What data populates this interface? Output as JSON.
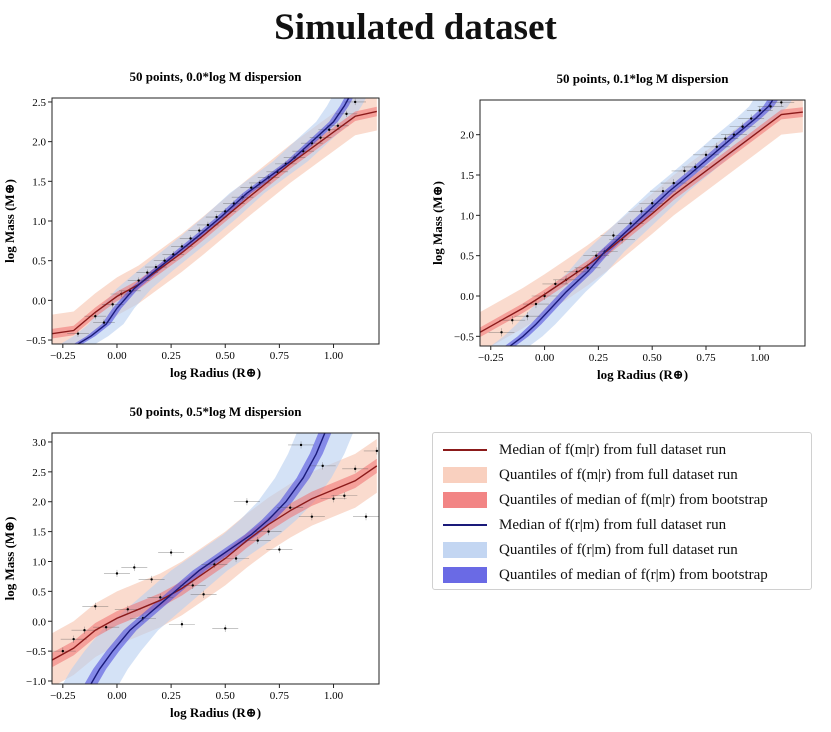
{
  "title": "Simulated dataset",
  "colors": {
    "median_mr": "#8b1a1a",
    "quant_mr": "#f8c8b4",
    "boot_mr": "#f07070",
    "median_rm": "#1a1a7a",
    "quant_rm": "#b8cff0",
    "boot_rm": "#5050e0"
  },
  "legend": [
    {
      "label": "Median of f(m|r) from full dataset run",
      "kind": "line",
      "color_key": "median_mr"
    },
    {
      "label": "Quantiles of f(m|r) from full dataset run",
      "kind": "patch",
      "color_key": "quant_mr"
    },
    {
      "label": "Quantiles of median of f(m|r) from bootstrap",
      "kind": "patch",
      "color_key": "boot_mr"
    },
    {
      "label": "Median of f(r|m) from full dataset run",
      "kind": "line",
      "color_key": "median_rm"
    },
    {
      "label": "Quantiles of f(r|m) from full dataset run",
      "kind": "patch",
      "color_key": "quant_rm"
    },
    {
      "label": "Quantiles of median of f(r|m) from bootstrap",
      "kind": "patch",
      "color_key": "boot_rm"
    }
  ],
  "chart_data": [
    {
      "type": "line",
      "title": "50 points, 0.0*log M dispersion",
      "xlabel": "log Radius (R⊕)",
      "ylabel": "log Mass (M⊕)",
      "xlim": [
        -0.3,
        1.21
      ],
      "ylim": [
        -0.55,
        2.55
      ],
      "xticks": [
        -0.25,
        0.0,
        0.25,
        0.5,
        0.75,
        1.0
      ],
      "xtick_labels": [
        "−0.25",
        "0.00",
        "0.25",
        "0.50",
        "0.75",
        "1.00"
      ],
      "yticks": [
        -0.5,
        0.0,
        0.5,
        1.0,
        1.5,
        2.0,
        2.5
      ],
      "ytick_labels": [
        "−0.5",
        "0.0",
        "0.5",
        "1.0",
        "1.5",
        "2.0",
        "2.5"
      ],
      "median_mr": {
        "x": [
          -0.3,
          -0.2,
          -0.1,
          0.0,
          0.1,
          0.2,
          0.3,
          0.4,
          0.5,
          0.6,
          0.7,
          0.8,
          0.9,
          1.0,
          1.1,
          1.2
        ],
        "y": [
          -0.42,
          -0.38,
          -0.15,
          0.05,
          0.2,
          0.4,
          0.6,
          0.82,
          1.05,
          1.28,
          1.5,
          1.72,
          1.92,
          2.12,
          2.32,
          2.38
        ]
      },
      "median_rm": {
        "x": [
          -0.18,
          -0.12,
          -0.05,
          0.0,
          0.08,
          0.18,
          0.28,
          0.38,
          0.48,
          0.6,
          0.7,
          0.8,
          0.9,
          1.0,
          1.05,
          1.07
        ],
        "y": [
          -0.55,
          -0.45,
          -0.3,
          -0.1,
          0.15,
          0.38,
          0.6,
          0.82,
          1.05,
          1.35,
          1.55,
          1.75,
          2.0,
          2.25,
          2.45,
          2.55
        ]
      },
      "quant_mr_width": 0.24,
      "boot_mr_width": 0.06,
      "quant_rm_width": 0.08,
      "boot_rm_width": 0.02,
      "points": {
        "x": [
          -0.18,
          -0.1,
          -0.06,
          -0.02,
          0.02,
          0.06,
          0.1,
          0.14,
          0.18,
          0.22,
          0.26,
          0.3,
          0.34,
          0.38,
          0.42,
          0.46,
          0.5,
          0.54,
          0.58,
          0.62,
          0.66,
          0.7,
          0.74,
          0.78,
          0.82,
          0.86,
          0.9,
          0.94,
          0.98,
          1.02,
          1.06,
          1.1
        ],
        "y": [
          -0.42,
          -0.2,
          -0.28,
          -0.05,
          0.08,
          0.12,
          0.25,
          0.35,
          0.42,
          0.5,
          0.58,
          0.68,
          0.78,
          0.88,
          0.95,
          1.05,
          1.12,
          1.22,
          1.3,
          1.42,
          1.48,
          1.55,
          1.62,
          1.72,
          1.8,
          1.88,
          1.98,
          2.05,
          2.15,
          2.2,
          2.35,
          2.5
        ]
      },
      "xerr": 0.05,
      "yerr": 0.04
    },
    {
      "type": "line",
      "title": "50 points, 0.1*log M dispersion",
      "xlabel": "log Radius (R⊕)",
      "ylabel": "log Mass (M⊕)",
      "xlim": [
        -0.3,
        1.21
      ],
      "ylim": [
        -0.62,
        2.43
      ],
      "xticks": [
        -0.25,
        0.0,
        0.25,
        0.5,
        0.75,
        1.0
      ],
      "xtick_labels": [
        "−0.25",
        "0.00",
        "0.25",
        "0.50",
        "0.75",
        "1.00"
      ],
      "yticks": [
        -0.5,
        0.0,
        0.5,
        1.0,
        1.5,
        2.0
      ],
      "ytick_labels": [
        "−0.5",
        "0.0",
        "0.5",
        "1.0",
        "1.5",
        "2.0"
      ],
      "median_mr": {
        "x": [
          -0.3,
          -0.2,
          -0.1,
          0.0,
          0.1,
          0.2,
          0.3,
          0.4,
          0.5,
          0.6,
          0.7,
          0.8,
          0.9,
          1.0,
          1.1,
          1.2
        ],
        "y": [
          -0.45,
          -0.3,
          -0.15,
          0.02,
          0.2,
          0.38,
          0.58,
          0.8,
          1.02,
          1.25,
          1.45,
          1.65,
          1.85,
          2.05,
          2.25,
          2.28
        ]
      },
      "median_rm": {
        "x": [
          -0.16,
          -0.1,
          -0.04,
          0.02,
          0.1,
          0.2,
          0.28,
          0.38,
          0.48,
          0.58,
          0.68,
          0.78,
          0.88,
          0.98,
          1.04,
          1.06
        ],
        "y": [
          -0.62,
          -0.5,
          -0.35,
          -0.18,
          0.05,
          0.3,
          0.55,
          0.8,
          1.05,
          1.3,
          1.52,
          1.75,
          1.98,
          2.2,
          2.35,
          2.43
        ]
      },
      "quant_mr_width": 0.25,
      "boot_mr_width": 0.06,
      "quant_rm_width": 0.09,
      "boot_rm_width": 0.025,
      "points": {
        "x": [
          -0.2,
          -0.15,
          -0.08,
          -0.04,
          0.0,
          0.05,
          0.1,
          0.15,
          0.2,
          0.24,
          0.28,
          0.32,
          0.36,
          0.4,
          0.45,
          0.5,
          0.55,
          0.6,
          0.65,
          0.7,
          0.75,
          0.8,
          0.84,
          0.88,
          0.92,
          0.96,
          1.0,
          1.05,
          1.1
        ],
        "y": [
          -0.45,
          -0.3,
          -0.25,
          -0.1,
          0.0,
          0.15,
          0.2,
          0.3,
          0.35,
          0.5,
          0.55,
          0.75,
          0.7,
          0.9,
          1.05,
          1.15,
          1.3,
          1.4,
          1.55,
          1.6,
          1.75,
          1.85,
          1.95,
          2.0,
          2.1,
          2.2,
          2.3,
          2.35,
          2.4
        ]
      },
      "xerr": 0.06,
      "yerr": 0.05
    },
    {
      "type": "line",
      "title": "50 points, 0.5*log M dispersion",
      "xlabel": "log Radius (R⊕)",
      "ylabel": "log Mass (M⊕)",
      "xlim": [
        -0.3,
        1.21
      ],
      "ylim": [
        -1.05,
        3.15
      ],
      "xticks": [
        -0.25,
        0.0,
        0.25,
        0.5,
        0.75,
        1.0
      ],
      "xtick_labels": [
        "−0.25",
        "0.00",
        "0.25",
        "0.50",
        "0.75",
        "1.00"
      ],
      "yticks": [
        -1.0,
        -0.5,
        0.0,
        0.5,
        1.0,
        1.5,
        2.0,
        2.5,
        3.0
      ],
      "ytick_labels": [
        "−1.0",
        "−0.5",
        "0.0",
        "0.5",
        "1.0",
        "1.5",
        "2.0",
        "2.5",
        "3.0"
      ],
      "median_mr": {
        "x": [
          -0.3,
          -0.2,
          -0.1,
          0.0,
          0.1,
          0.2,
          0.3,
          0.4,
          0.5,
          0.6,
          0.7,
          0.8,
          0.9,
          1.0,
          1.1,
          1.2
        ],
        "y": [
          -0.65,
          -0.45,
          -0.15,
          0.05,
          0.2,
          0.35,
          0.55,
          0.8,
          1.05,
          1.35,
          1.62,
          1.85,
          2.05,
          2.2,
          2.35,
          2.6
        ]
      },
      "median_rm": {
        "x": [
          -0.12,
          -0.08,
          -0.02,
          0.06,
          0.14,
          0.22,
          0.3,
          0.38,
          0.46,
          0.54,
          0.62,
          0.7,
          0.78,
          0.86,
          0.92,
          0.96
        ],
        "y": [
          -1.05,
          -0.8,
          -0.5,
          -0.15,
          0.1,
          0.35,
          0.6,
          0.85,
          1.05,
          1.25,
          1.45,
          1.7,
          2.0,
          2.4,
          2.8,
          3.15
        ]
      },
      "quant_mr_width": 0.45,
      "boot_mr_width": 0.12,
      "quant_rm_width": 0.13,
      "boot_rm_width": 0.03,
      "points": {
        "x": [
          -0.25,
          -0.2,
          -0.15,
          -0.1,
          -0.05,
          0.0,
          0.05,
          0.08,
          0.12,
          0.16,
          0.2,
          0.25,
          0.3,
          0.35,
          0.4,
          0.45,
          0.5,
          0.55,
          0.6,
          0.65,
          0.7,
          0.75,
          0.8,
          0.85,
          0.9,
          0.95,
          1.0,
          1.05,
          1.1,
          1.15,
          1.2
        ],
        "y": [
          -0.5,
          -0.3,
          -0.15,
          0.25,
          -0.1,
          0.8,
          0.2,
          0.9,
          0.05,
          0.7,
          0.4,
          1.15,
          -0.05,
          0.6,
          0.45,
          0.95,
          -0.12,
          1.05,
          2.0,
          1.35,
          1.5,
          1.2,
          1.9,
          2.95,
          1.75,
          2.6,
          2.05,
          2.1,
          2.55,
          1.75,
          2.85
        ]
      },
      "xerr": 0.06,
      "yerr": 0.06
    }
  ]
}
